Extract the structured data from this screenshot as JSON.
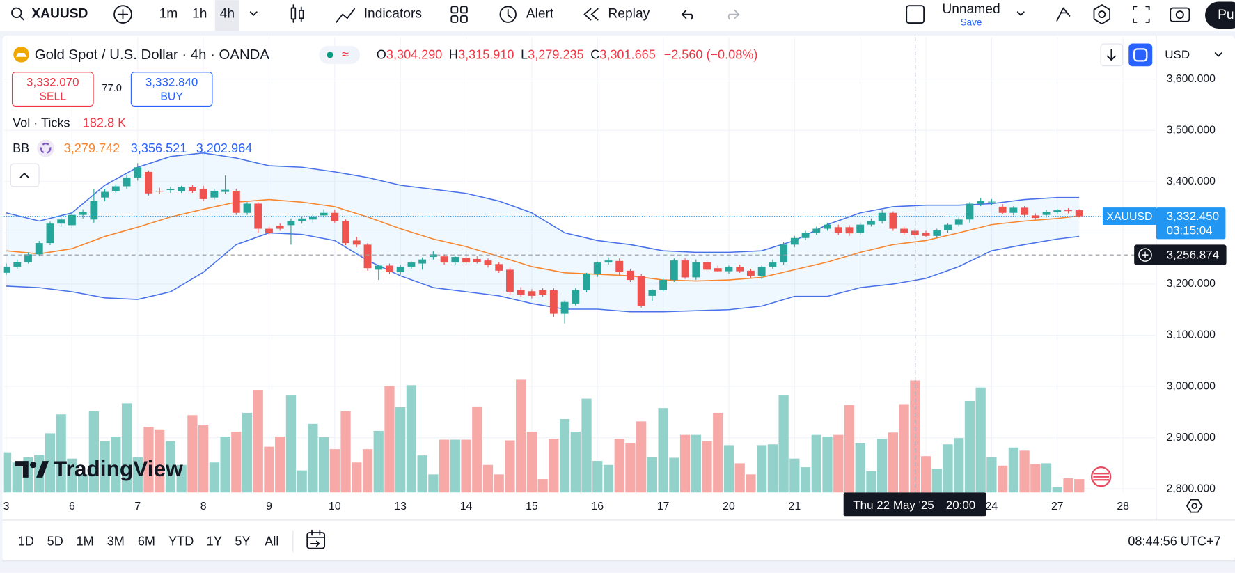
{
  "toolbar": {
    "symbol": "XAUUSD",
    "intervals": [
      "1m",
      "1h",
      "4h"
    ],
    "indicators": "Indicators",
    "alert": "Alert",
    "replay": "Replay",
    "layout_name": "Unnamed",
    "save": "Save",
    "publish": "Pu"
  },
  "legend": {
    "title": "Gold Spot / U.S. Dollar · 4h · OANDA",
    "ohlc": [
      {
        "key": "O",
        "value": "3,304.290"
      },
      {
        "key": "H",
        "value": "3,315.910"
      },
      {
        "key": "L",
        "value": "3,279.235"
      },
      {
        "key": "C",
        "value": "3,301.665"
      }
    ],
    "change": "−2.560 (−0.08%)",
    "sell_price": "3,332.070",
    "sell": "SELL",
    "spread": "77.0",
    "buy_price": "3,332.840",
    "buy": "BUY",
    "volume_name": "Vol · Ticks",
    "volume_value": "182.8 K",
    "bb_name": "BB",
    "bb_values": [
      "3,279.742",
      "3,356.521",
      "3,202.964"
    ]
  },
  "currency": "USD",
  "watermark": "TradingView",
  "bottom_bar": {
    "ranges": [
      "1D",
      "5D",
      "1M",
      "3M",
      "6M",
      "YTD",
      "1Y",
      "5Y",
      "All"
    ],
    "clock": "08:44:56 UTC+7"
  },
  "chart_data": {
    "type": "candlestick",
    "up_color": "#26a69a",
    "down_color": "#ef5350",
    "volume_up_color": "#92d2cb",
    "volume_down_color": "#f7a9a8",
    "ylim": [
      2793,
      3682
    ],
    "yticks": [
      {
        "value": 3600,
        "label": "3,600.000"
      },
      {
        "value": 3500,
        "label": "3,500.000"
      },
      {
        "value": 3400,
        "label": "3,400.000"
      },
      {
        "value": 3300,
        "label": "3,300.000"
      },
      {
        "value": 3200,
        "label": "3,200.000"
      },
      {
        "value": 3100,
        "label": "3,100.000"
      },
      {
        "value": 3000,
        "label": "3,000.000"
      },
      {
        "value": 2900,
        "label": "2,900.000"
      },
      {
        "value": 2800,
        "label": "2,800.000"
      }
    ],
    "grid": true,
    "x_labels": [
      "3",
      "6",
      "7",
      "8",
      "9",
      "10",
      "13",
      "14",
      "15",
      "16",
      "17",
      "20",
      "21",
      null,
      null,
      "24",
      "27",
      "28"
    ],
    "crosshair_time": [
      "Thu 22 May '25",
      "20:00"
    ],
    "crosshair_price": {
      "value": 3256.874,
      "label": "3,256.874"
    },
    "last_price": {
      "value": 3332.45,
      "label": "3,332.450",
      "name": "XAUUSD",
      "countdown": "03:15:04",
      "color": "#2196f3"
    },
    "volume_ylim": [
      0,
      1600
    ],
    "candles": [
      [
        3222,
        3240,
        3218,
        3234
      ],
      [
        3234,
        3248,
        3230,
        3243
      ],
      [
        3243,
        3262,
        3240,
        3258
      ],
      [
        3258,
        3284,
        3254,
        3280
      ],
      [
        3280,
        3322,
        3276,
        3318
      ],
      [
        3318,
        3330,
        3312,
        3326
      ],
      [
        3315,
        3340,
        3310,
        3335
      ],
      [
        3335,
        3346,
        3328,
        3341
      ],
      [
        3326,
        3385,
        3320,
        3362
      ],
      [
        3369,
        3386,
        3362,
        3380
      ],
      [
        3382,
        3395,
        3378,
        3391
      ],
      [
        3391,
        3412,
        3386,
        3408
      ],
      [
        3408,
        3436,
        3402,
        3428
      ],
      [
        3419,
        3422,
        3373,
        3377
      ],
      [
        3382,
        3388,
        3376,
        3381
      ],
      [
        3384,
        3390,
        3378,
        3385
      ],
      [
        3381,
        3392,
        3378,
        3389
      ],
      [
        3389,
        3393,
        3378,
        3382
      ],
      [
        3385,
        3392,
        3362,
        3366
      ],
      [
        3369,
        3386,
        3365,
        3382
      ],
      [
        3380,
        3412,
        3376,
        3384
      ],
      [
        3382,
        3386,
        3335,
        3339
      ],
      [
        3339,
        3360,
        3335,
        3357
      ],
      [
        3357,
        3360,
        3300,
        3308
      ],
      [
        3308,
        3312,
        3296,
        3300
      ],
      [
        3314,
        3318,
        3304,
        3308
      ],
      [
        3315,
        3328,
        3277,
        3323
      ],
      [
        3323,
        3332,
        3318,
        3328
      ],
      [
        3326,
        3336,
        3320,
        3332
      ],
      [
        3334,
        3346,
        3330,
        3339
      ],
      [
        3339,
        3344,
        3320,
        3323
      ],
      [
        3323,
        3326,
        3276,
        3280
      ],
      [
        3285,
        3292,
        3272,
        3277
      ],
      [
        3277,
        3280,
        3226,
        3231
      ],
      [
        3228,
        3238,
        3208,
        3236
      ],
      [
        3236,
        3240,
        3219,
        3223
      ],
      [
        3223,
        3238,
        3218,
        3234
      ],
      [
        3234,
        3244,
        3230,
        3242
      ],
      [
        3240,
        3252,
        3228,
        3248
      ],
      [
        3253,
        3264,
        3248,
        3258
      ],
      [
        3254,
        3258,
        3238,
        3242
      ],
      [
        3242,
        3256,
        3238,
        3253
      ],
      [
        3251,
        3256,
        3238,
        3242
      ],
      [
        3249,
        3254,
        3240,
        3243
      ],
      [
        3246,
        3250,
        3232,
        3237
      ],
      [
        3239,
        3243,
        3222,
        3226
      ],
      [
        3228,
        3232,
        3180,
        3185
      ],
      [
        3189,
        3194,
        3175,
        3179
      ],
      [
        3186,
        3190,
        3172,
        3177
      ],
      [
        3188,
        3192,
        3175,
        3179
      ],
      [
        3188,
        3192,
        3136,
        3142
      ],
      [
        3142,
        3168,
        3123,
        3165
      ],
      [
        3162,
        3192,
        3158,
        3188
      ],
      [
        3188,
        3222,
        3184,
        3219
      ],
      [
        3219,
        3244,
        3214,
        3242
      ],
      [
        3242,
        3252,
        3238,
        3246
      ],
      [
        3245,
        3250,
        3218,
        3223
      ],
      [
        3226,
        3230,
        3204,
        3208
      ],
      [
        3216,
        3220,
        3154,
        3157
      ],
      [
        3177,
        3190,
        3166,
        3188
      ],
      [
        3188,
        3212,
        3184,
        3208
      ],
      [
        3208,
        3250,
        3204,
        3246
      ],
      [
        3246,
        3250,
        3210,
        3213
      ],
      [
        3213,
        3248,
        3208,
        3243
      ],
      [
        3243,
        3247,
        3226,
        3228
      ],
      [
        3231,
        3236,
        3224,
        3225
      ],
      [
        3225,
        3236,
        3220,
        3233
      ],
      [
        3233,
        3238,
        3222,
        3225
      ],
      [
        3226,
        3230,
        3212,
        3216
      ],
      [
        3216,
        3236,
        3210,
        3234
      ],
      [
        3234,
        3248,
        3230,
        3242
      ],
      [
        3242,
        3282,
        3238,
        3277
      ],
      [
        3277,
        3294,
        3272,
        3290
      ],
      [
        3290,
        3304,
        3286,
        3300
      ],
      [
        3300,
        3312,
        3296,
        3308
      ],
      [
        3308,
        3320,
        3304,
        3316
      ],
      [
        3311,
        3316,
        3296,
        3300
      ],
      [
        3311,
        3315,
        3294,
        3299
      ],
      [
        3300,
        3320,
        3296,
        3316
      ],
      [
        3316,
        3328,
        3312,
        3323
      ],
      [
        3323,
        3344,
        3318,
        3339
      ],
      [
        3339,
        3342,
        3304,
        3308
      ],
      [
        3308,
        3312,
        3296,
        3300
      ],
      [
        3304,
        3308,
        3290,
        3296
      ],
      [
        3300,
        3304,
        3292,
        3294
      ],
      [
        3294,
        3308,
        3290,
        3305
      ],
      [
        3305,
        3318,
        3300,
        3316
      ],
      [
        3316,
        3330,
        3312,
        3326
      ],
      [
        3326,
        3360,
        3320,
        3357
      ],
      [
        3357,
        3368,
        3352,
        3362
      ],
      [
        3360,
        3366,
        3355,
        3361
      ],
      [
        3351,
        3356,
        3336,
        3339
      ],
      [
        3339,
        3352,
        3334,
        3349
      ],
      [
        3349,
        3352,
        3330,
        3335
      ],
      [
        3334,
        3338,
        3326,
        3329
      ],
      [
        3335,
        3345,
        3330,
        3341
      ],
      [
        3341,
        3347,
        3336,
        3344
      ],
      [
        3344,
        3348,
        3338,
        3343
      ],
      [
        3344,
        3346,
        3330,
        3332.45
      ]
    ],
    "volumes": [
      548,
      409,
      484,
      516,
      806,
      1064,
      462,
      247,
      1107,
      699,
      763,
      1215,
      484,
      892,
      860,
      699,
      376,
      1054,
      914,
      409,
      763,
      828,
      1086,
      1398,
      624,
      763,
      1322,
      301,
      935,
      753,
      591,
      1107,
      409,
      591,
      839,
      1451,
      1161,
      1462,
      505,
      247,
      720,
      720,
      720,
      1172,
      376,
      247,
      710,
      1537,
      828,
      183,
      731,
      1000,
      828,
      1279,
      430,
      376,
      731,
      677,
      968,
      484,
      1150,
      473,
      785,
      785,
      699,
      1086,
      645,
      398,
      247,
      645,
      656,
      1322,
      462,
      344,
      785,
      763,
      785,
      1193,
      677,
      290,
      731,
      817,
      1204,
      1527,
      495,
      323,
      656,
      742,
      1247,
      1430,
      484,
      366,
      613,
      570,
      387,
      398,
      75,
      194,
      182.8
    ],
    "bb_x": [
      0,
      3,
      6,
      9,
      12,
      15,
      18,
      21,
      24,
      27,
      30,
      33,
      36,
      39,
      42,
      45,
      48,
      51,
      54,
      57,
      60,
      63,
      66,
      69,
      72,
      75,
      78,
      81,
      84,
      87,
      90,
      93,
      96,
      98
    ],
    "bb_fill": "rgba(33,150,243,0.07)",
    "bb_series": [
      {
        "color": "#f7862f",
        "values": [
          3265,
          3259,
          3269,
          3293,
          3311,
          3331,
          3346,
          3360,
          3365,
          3360,
          3351,
          3331,
          3308,
          3288,
          3273,
          3254,
          3234,
          3222,
          3219,
          3216,
          3208,
          3206,
          3208,
          3213,
          3228,
          3243,
          3262,
          3277,
          3285,
          3300,
          3316,
          3323,
          3328,
          3333
        ]
      },
      {
        "color": "#4a72e8",
        "values": [
          3339,
          3323,
          3339,
          3393,
          3428,
          3449,
          3456,
          3446,
          3431,
          3428,
          3419,
          3408,
          3393,
          3385,
          3377,
          3362,
          3339,
          3300,
          3285,
          3277,
          3265,
          3262,
          3262,
          3265,
          3285,
          3316,
          3339,
          3351,
          3354,
          3354,
          3357,
          3365,
          3369,
          3369
        ]
      },
      {
        "color": "#4a72e8",
        "values": [
          3196,
          3193,
          3185,
          3173,
          3170,
          3185,
          3223,
          3277,
          3300,
          3297,
          3285,
          3246,
          3216,
          3193,
          3185,
          3177,
          3162,
          3151,
          3151,
          3146,
          3146,
          3148,
          3150,
          3157,
          3176,
          3176,
          3193,
          3200,
          3211,
          3234,
          3265,
          3277,
          3288,
          3293
        ]
      }
    ]
  }
}
